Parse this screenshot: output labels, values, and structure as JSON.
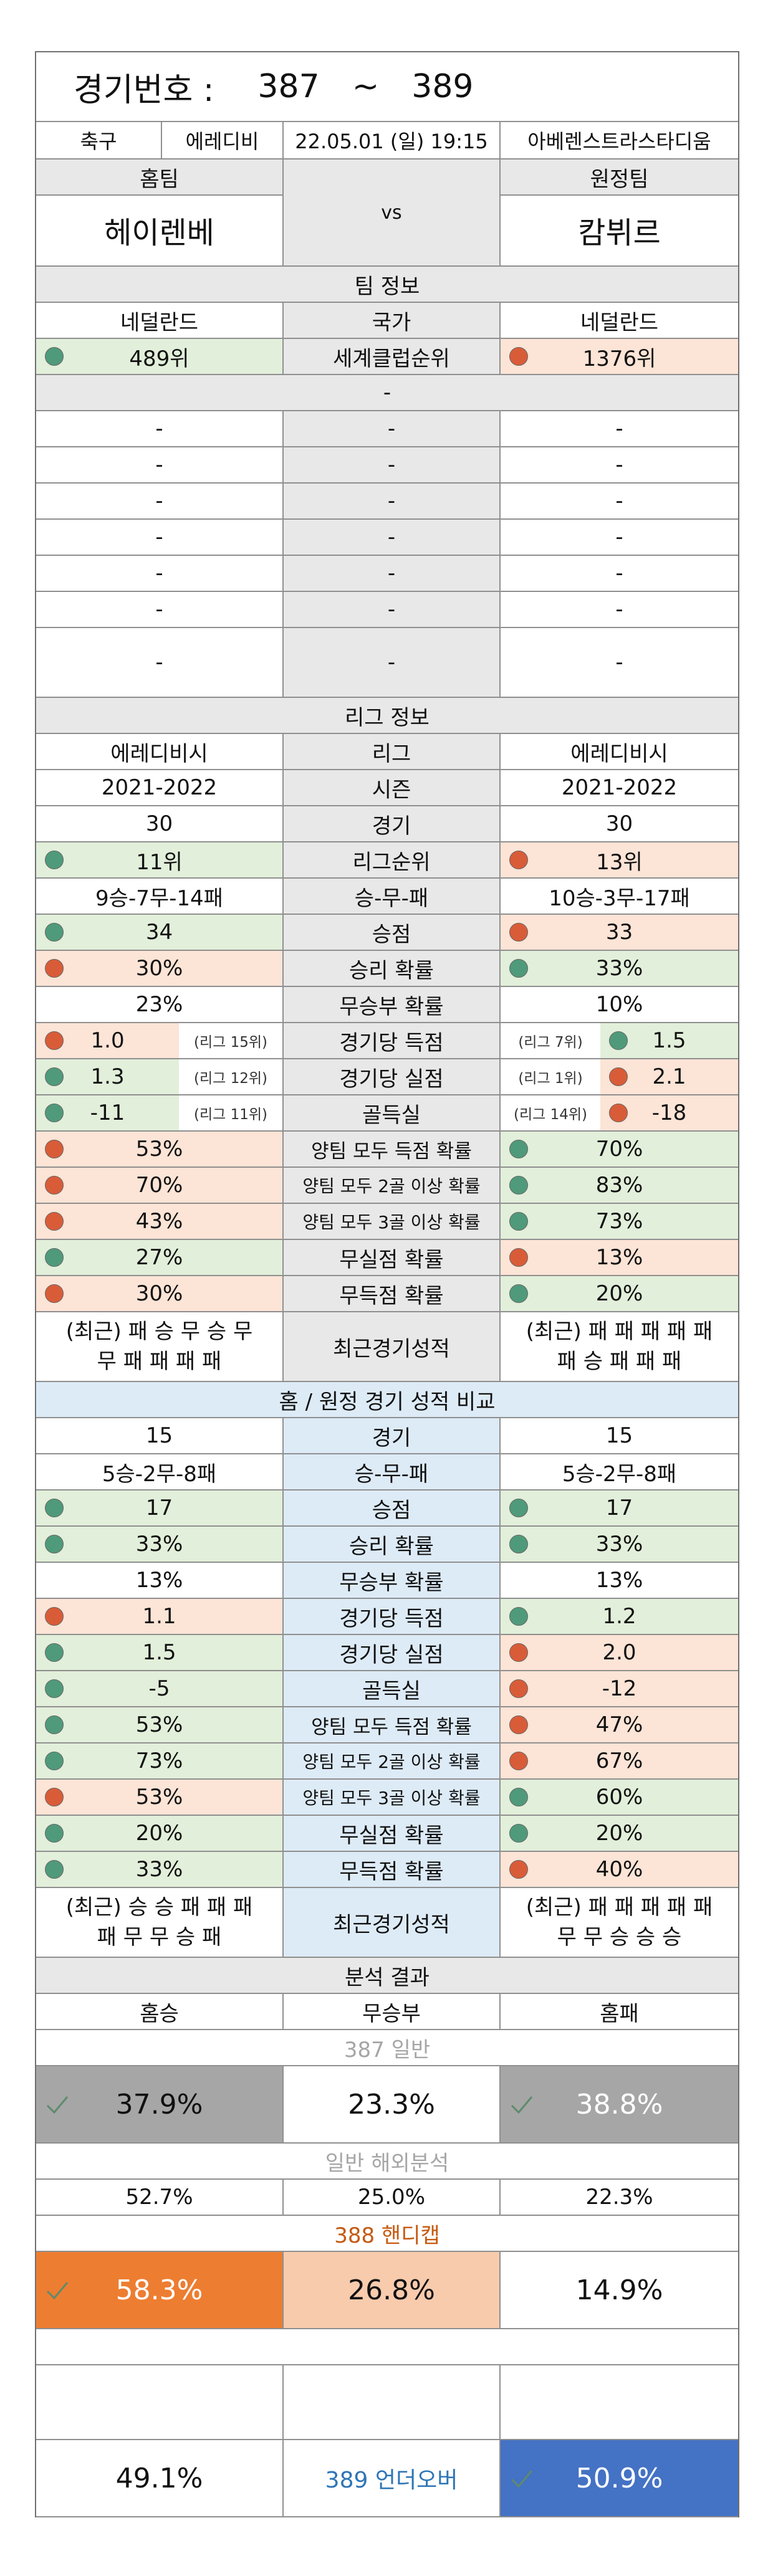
{
  "header": {
    "label": "경기번호 :",
    "from": "387",
    "tilde": "~",
    "to": "389"
  },
  "match": {
    "sport": "축구",
    "league": "에레디비",
    "datetime": "22.05.01 (일) 19:15",
    "venue": "아베렌스트라스타디움",
    "home_label": "홈팀",
    "away_label": "원정팀",
    "home_team": "헤이렌베",
    "vs": "vs",
    "away_team": "캄뷔르"
  },
  "team_info": {
    "title": "팀 정보",
    "home_country": "네덜란드",
    "country_label": "국가",
    "away_country": "네덜란드",
    "home_rank": "489위",
    "rank_label": "세계클럽순위",
    "away_rank": "1376위",
    "dash": "-"
  },
  "league_info": {
    "title": "리그 정보",
    "home_league": "에레디비시",
    "league_label": "리그",
    "away_league": "에레디비시",
    "home_season": "2021-2022",
    "season_label": "시즌",
    "away_season": "2021-2022",
    "home_games": "30",
    "games_label": "경기",
    "away_games": "30",
    "home_pos": "11위",
    "pos_label": "리그순위",
    "away_pos": "13위",
    "home_wdl": "9승-7무-14패",
    "wdl_label": "승-무-패",
    "away_wdl": "10승-3무-17패",
    "home_pts": "34",
    "pts_label": "승점",
    "away_pts": "33",
    "home_win": "30%",
    "win_label": "승리 확률",
    "away_win": "33%",
    "home_draw": "23%",
    "draw_label": "무승부 확률",
    "away_draw": "10%",
    "home_gf": "1.0",
    "home_gf_rank": "(리그 15위)",
    "gf_label": "경기당 득점",
    "away_gf_rank": "(리그 7위)",
    "away_gf": "1.5",
    "home_ga": "1.3",
    "home_ga_rank": "(리그 12위)",
    "ga_label": "경기당 실점",
    "away_ga_rank": "(리그 1위)",
    "away_ga": "2.1",
    "home_gd": "-11",
    "home_gd_rank": "(리그 11위)",
    "gd_label": "골득실",
    "away_gd_rank": "(리그 14위)",
    "away_gd": "-18",
    "home_btts": "53%",
    "btts_label": "양팀 모두 득점 확률",
    "away_btts": "70%",
    "home_btts2": "70%",
    "btts2_label": "양팀 모두 2골 이상 확률",
    "away_btts2": "83%",
    "home_btts3": "43%",
    "btts3_label": "양팀 모두 3골 이상 확률",
    "away_btts3": "73%",
    "home_cs": "27%",
    "cs_label": "무실점 확률",
    "away_cs": "13%",
    "home_fts": "30%",
    "fts_label": "무득점 확률",
    "away_fts": "20%",
    "home_recent_1": "(최근) 패 승 무 승 무",
    "home_recent_2": "무 패 패 패 패",
    "recent_label": "최근경기성적",
    "away_recent_1": "(최근) 패 패 패 패 패",
    "away_recent_2": "패 승 패 패 패"
  },
  "ha_compare": {
    "title": "홈 / 원정 경기 성적 비교",
    "home_games": "15",
    "games_label": "경기",
    "away_games": "15",
    "home_wdl": "5승-2무-8패",
    "wdl_label": "승-무-패",
    "away_wdl": "5승-2무-8패",
    "home_pts": "17",
    "pts_label": "승점",
    "away_pts": "17",
    "home_win": "33%",
    "win_label": "승리 확률",
    "away_win": "33%",
    "home_draw": "13%",
    "draw_label": "무승부 확률",
    "away_draw": "13%",
    "home_gf": "1.1",
    "gf_label": "경기당 득점",
    "away_gf": "1.2",
    "home_ga": "1.5",
    "ga_label": "경기당 실점",
    "away_ga": "2.0",
    "home_gd": "-5",
    "gd_label": "골득실",
    "away_gd": "-12",
    "home_btts": "53%",
    "btts_label": "양팀 모두 득점 확률",
    "away_btts": "47%",
    "home_btts2": "73%",
    "btts2_label": "양팀 모두 2골 이상 확률",
    "away_btts2": "67%",
    "home_btts3": "53%",
    "btts3_label": "양팀 모두 3골 이상 확률",
    "away_btts3": "60%",
    "home_cs": "20%",
    "cs_label": "무실점 확률",
    "away_cs": "20%",
    "home_fts": "33%",
    "fts_label": "무득점 확률",
    "away_fts": "40%",
    "home_recent_1": "(최근) 승 승 패 패 패",
    "home_recent_2": "패 무 무 승 패",
    "recent_label": "최근경기성적",
    "away_recent_1": "(최근) 패 패 패 패 패",
    "away_recent_2": "무 무 승 승 승"
  },
  "analysis": {
    "title": "분석 결과",
    "home_win_label": "홈승",
    "draw_label": "무승부",
    "home_loss_label": "홈패",
    "general_title": "387 일반",
    "general_home": "37.9%",
    "general_draw": "23.3%",
    "general_away": "38.8%",
    "overseas_title": "일반 해외분석",
    "overseas_home": "52.7%",
    "overseas_draw": "25.0%",
    "overseas_away": "22.3%",
    "handicap_title": "388 핸디캡",
    "handicap_home": "58.3%",
    "handicap_draw": "26.8%",
    "handicap_away": "14.9%",
    "uo_under": "49.1%",
    "uo_title": "389 언더오버",
    "uo_over": "50.9%"
  },
  "colors": {
    "green_cell": "#e2efda",
    "red_cell": "#fce4d6",
    "green_dot": "#4f9a7a",
    "red_dot": "#d95c38",
    "header_gray": "#e8e8e8",
    "header_blue": "#ddebf7",
    "pick_gray": "#a6a6a6",
    "pick_orange": "#ed7d31",
    "pick_orange_light": "#f8cbad",
    "pick_blue": "#4472c4",
    "title_orange": "#c55a11",
    "title_blue": "#2e75b6",
    "title_gray": "#a6a6a6"
  },
  "icons": {
    "check": "check-icon",
    "dot": "status-dot-icon"
  }
}
